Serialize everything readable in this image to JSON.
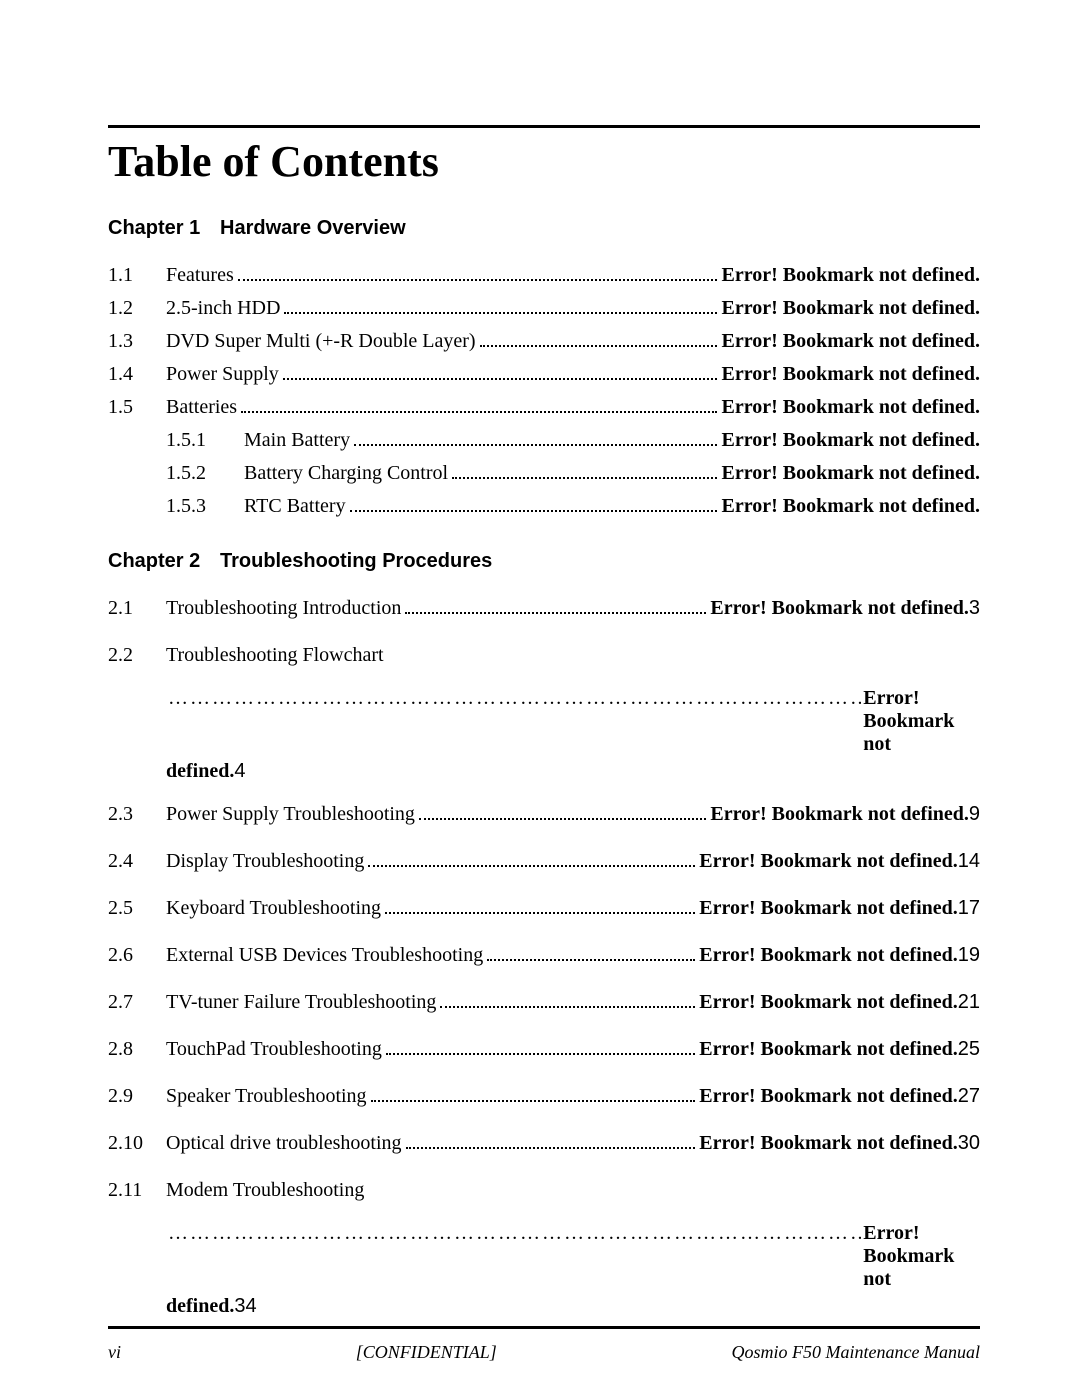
{
  "title": "Table of Contents",
  "error_text": "Error! Bookmark not defined.",
  "chapters": [
    {
      "num": "Chapter 1",
      "title": "Hardware Overview",
      "spaced": false,
      "items": [
        {
          "n": "1.1",
          "label": "Features",
          "page": ""
        },
        {
          "n": "1.2",
          "label": "2.5-inch HDD",
          "page": ""
        },
        {
          "n": "1.3",
          "label": "DVD Super Multi (+-R Double Layer)",
          "page": ""
        },
        {
          "n": "1.4",
          "label": "Power Supply",
          "page": ""
        },
        {
          "n": "1.5",
          "label": "Batteries",
          "page": "",
          "sub": [
            {
              "n": "1.5.1",
              "label": "Main Battery",
              "page": ""
            },
            {
              "n": "1.5.2",
              "label": "Battery Charging Control",
              "page": ""
            },
            {
              "n": "1.5.3",
              "label": "RTC Battery",
              "page": ""
            }
          ]
        }
      ]
    },
    {
      "num": "Chapter 2",
      "title": "Troubleshooting Procedures",
      "spaced": true,
      "items": [
        {
          "n": "2.1",
          "label": "Troubleshooting Introduction",
          "page": "3"
        },
        {
          "n": "2.2",
          "label": "Troubleshooting Flowchart",
          "page": "4",
          "multiline": true,
          "ellipsis": true
        },
        {
          "n": "2.3",
          "label": "Power Supply Troubleshooting",
          "page": "9"
        },
        {
          "n": "2.4",
          "label": "Display Troubleshooting",
          "page": "14"
        },
        {
          "n": "2.5",
          "label": "Keyboard Troubleshooting",
          "page": "17"
        },
        {
          "n": "2.6",
          "label": "External USB Devices Troubleshooting",
          "page": "19"
        },
        {
          "n": "2.7",
          "label": "TV-tuner Failure Troubleshooting",
          "page": "21"
        },
        {
          "n": "2.8",
          "label": "TouchPad Troubleshooting",
          "page": "25"
        },
        {
          "n": "2.9",
          "label": "Speaker Troubleshooting",
          "page": "27"
        },
        {
          "n": "2.10",
          "label": "Optical drive troubleshooting",
          "page": "30"
        },
        {
          "n": "2.11",
          "label": "Modem Troubleshooting",
          "page": "34",
          "multiline": true,
          "ellipsis": true
        }
      ]
    }
  ],
  "footer": {
    "left": "vi",
    "center": "[CONFIDENTIAL]",
    "right_prefix": "Qosmio ",
    "right_model": "F50",
    "right_suffix": " Maintenance Manual"
  }
}
